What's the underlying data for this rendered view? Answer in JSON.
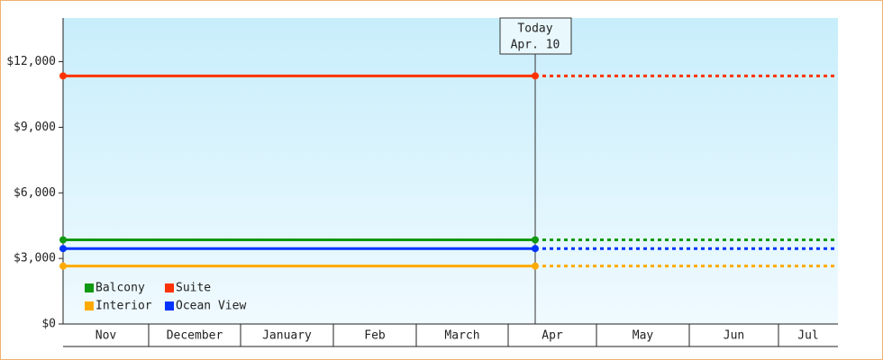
{
  "chart_data": {
    "type": "line",
    "categories": [
      "Nov",
      "December",
      "January",
      "Feb",
      "March",
      "Apr",
      "May",
      "Jun",
      "Jul"
    ],
    "series": [
      {
        "name": "Balcony",
        "color": "#119911",
        "value": 3850
      },
      {
        "name": "Suite",
        "color": "#ff3300",
        "value": 11350
      },
      {
        "name": "Interior",
        "color": "#ffaa00",
        "value": 2650
      },
      {
        "name": "Ocean View",
        "color": "#0033ff",
        "value": 3450
      }
    ],
    "today_label": "Today",
    "today_date": "Apr. 10",
    "ylim": [
      0,
      14000
    ],
    "yticks": [
      {
        "value": 0,
        "label": "$0"
      },
      {
        "value": 3000,
        "label": "$3,000"
      },
      {
        "value": 6000,
        "label": "$6,000"
      },
      {
        "value": 9000,
        "label": "$9,000"
      },
      {
        "value": 12000,
        "label": "$12,000"
      }
    ]
  }
}
